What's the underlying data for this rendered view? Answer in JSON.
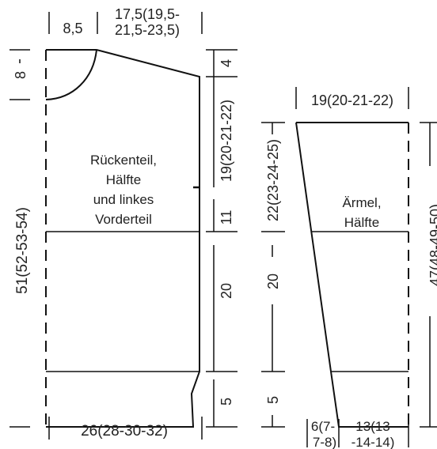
{
  "colors": {
    "line": "#111111",
    "text": "#222222",
    "background": "#ffffff"
  },
  "back_panel": {
    "top_labels": {
      "neck_width": "8,5",
      "shoulder_line1": "17,5(19,5-",
      "shoulder_line2": "21,5-23,5)"
    },
    "left_labels": {
      "neck_depth": "8",
      "total_height": "51(52-53-54)"
    },
    "right_labels": {
      "shoulder_drop": "4",
      "armhole": "19(20-21-22)",
      "upper_body": "11",
      "body": "20",
      "rib": "5"
    },
    "bottom_label": "26(28-30-32)",
    "center_label_lines": [
      "Rückenteil,",
      "Hälfte",
      "und linkes",
      "Vorderteil"
    ]
  },
  "sleeve": {
    "top_label": "19(20-21-22)",
    "left_labels": {
      "upper": "22(23-24-25)",
      "lower": "20",
      "rib": "5"
    },
    "right_label": "47(48-49-50)",
    "bottom_labels": {
      "left_line1": "6(7-",
      "left_line2": "7-8)",
      "right_line1": "13(13",
      "right_line2": "-14-14)"
    },
    "center_label_lines": [
      "Ärmel,",
      "Hälfte"
    ]
  }
}
